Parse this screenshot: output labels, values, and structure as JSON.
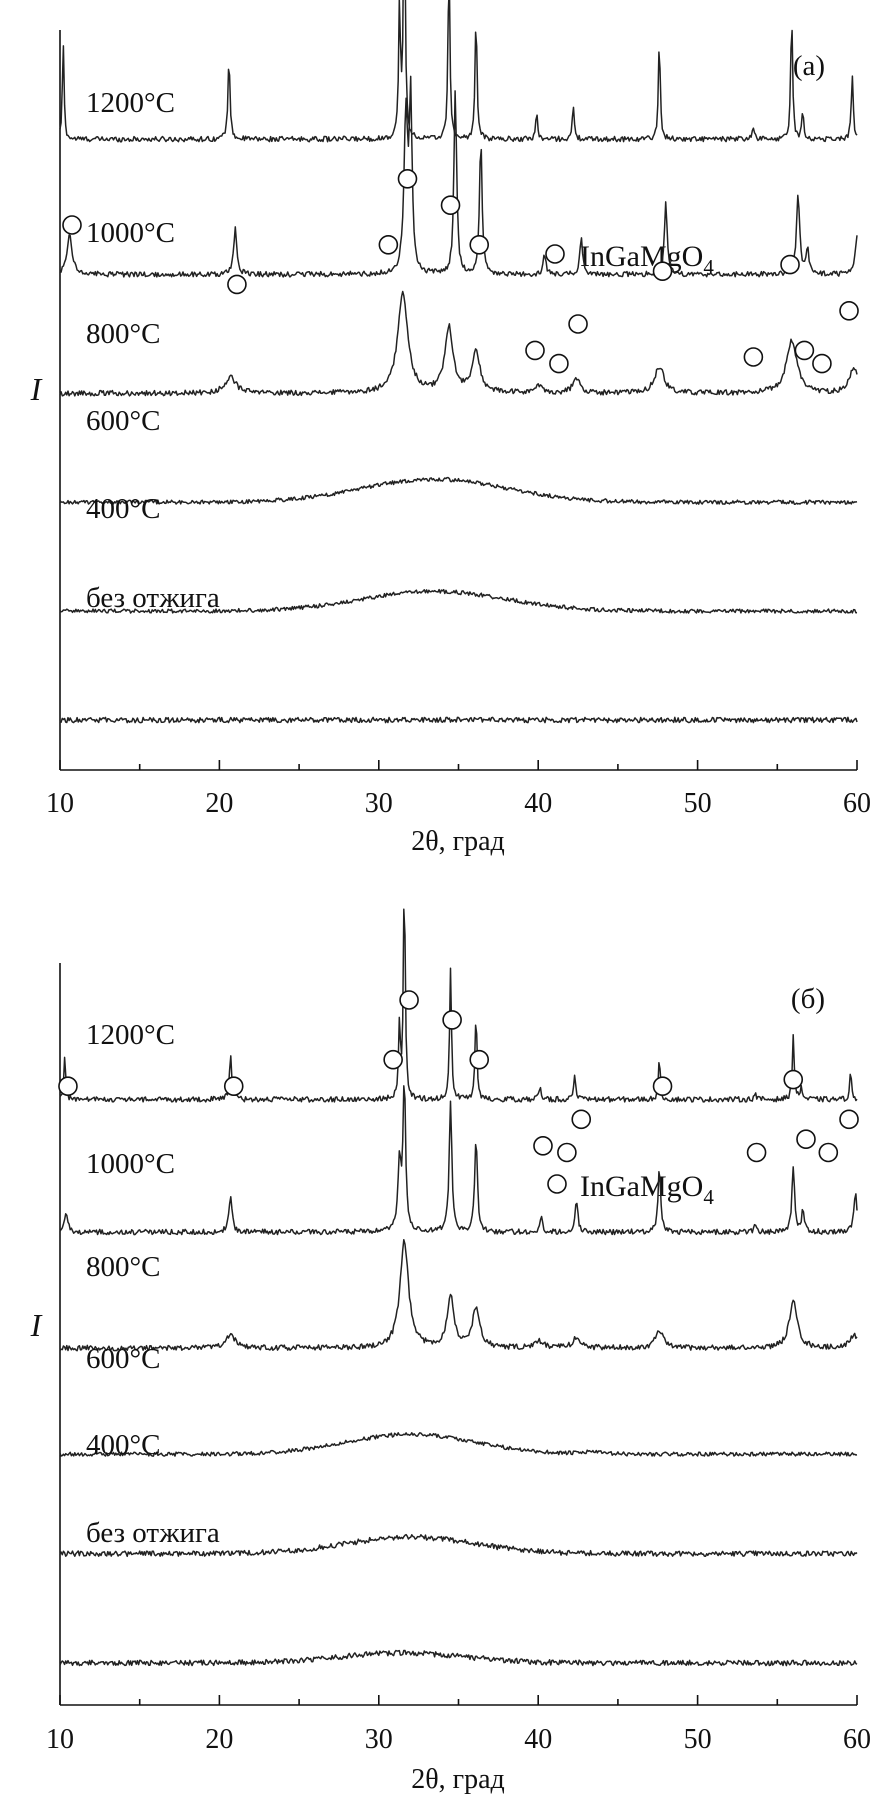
{
  "chart_data": [
    {
      "type": "line",
      "panel_label": "(a)",
      "xlabel": "2θ, град",
      "ylabel": "I",
      "xlim": [
        10,
        60
      ],
      "xticks": [
        10,
        20,
        30,
        40,
        50,
        60
      ],
      "legend": {
        "marker": "circle",
        "label": "InGaMgO",
        "subscript": "4"
      },
      "series": [
        {
          "name": "1200°C",
          "offset": 0.88,
          "baseline": 0.0,
          "noise": 0.004,
          "hump": null,
          "peaks": [
            [
              10.2,
              0.15,
              0.06
            ],
            [
              20.6,
              0.12,
              0.08
            ],
            [
              31.3,
              0.2,
              0.07
            ],
            [
              31.6,
              0.38,
              0.07
            ],
            [
              34.4,
              0.27,
              0.07
            ],
            [
              36.1,
              0.19,
              0.07
            ],
            [
              39.9,
              0.04,
              0.07
            ],
            [
              42.2,
              0.05,
              0.07
            ],
            [
              47.6,
              0.15,
              0.07
            ],
            [
              53.5,
              0.02,
              0.07
            ],
            [
              55.9,
              0.19,
              0.07
            ],
            [
              56.6,
              0.04,
              0.07
            ],
            [
              59.7,
              0.1,
              0.07
            ]
          ]
        },
        {
          "name": "1000°C",
          "offset": 0.675,
          "baseline": 0.0,
          "noise": 0.004,
          "hump": null,
          "peaks": [
            [
              10.6,
              0.06,
              0.2
            ],
            [
              21.0,
              0.07,
              0.12
            ],
            [
              31.7,
              0.24,
              0.14
            ],
            [
              32.0,
              0.26,
              0.1
            ],
            [
              34.8,
              0.28,
              0.1
            ],
            [
              36.4,
              0.2,
              0.1
            ],
            [
              40.4,
              0.03,
              0.1
            ],
            [
              42.7,
              0.06,
              0.1
            ],
            [
              48.0,
              0.11,
              0.1
            ],
            [
              56.3,
              0.12,
              0.12
            ],
            [
              56.9,
              0.04,
              0.1
            ],
            [
              60,
              0.06,
              0.12
            ]
          ]
        },
        {
          "name": "800°C",
          "offset": 0.495,
          "baseline": 0.0,
          "noise": 0.004,
          "hump": null,
          "peaks": [
            [
              20.7,
              0.025,
              0.4
            ],
            [
              31.5,
              0.15,
              0.38
            ],
            [
              34.4,
              0.1,
              0.3
            ],
            [
              36.1,
              0.06,
              0.3
            ],
            [
              40.0,
              0.01,
              0.3
            ],
            [
              42.4,
              0.02,
              0.3
            ],
            [
              47.6,
              0.04,
              0.35
            ],
            [
              55.9,
              0.08,
              0.4
            ],
            [
              59.8,
              0.04,
              0.3
            ]
          ]
        },
        {
          "name": "600°C",
          "offset": 0.33,
          "baseline": 0.0,
          "noise": 0.003,
          "hump": [
            33.5,
            0.035,
            4.5
          ],
          "peaks": []
        },
        {
          "name": "400°C",
          "offset": 0.165,
          "baseline": 0.0,
          "noise": 0.003,
          "hump": [
            33.5,
            0.03,
            4.5
          ],
          "peaks": []
        },
        {
          "name": "без отжига",
          "offset": 0.0,
          "baseline": 0.0,
          "noise": 0.004,
          "hump": null,
          "peaks": []
        }
      ],
      "circle_markers": [
        [
          10.8,
          0.75,
          "left"
        ],
        [
          21.1,
          0.66
        ],
        [
          30.6,
          0.72
        ],
        [
          31.8,
          0.82
        ],
        [
          34.5,
          0.78
        ],
        [
          36.3,
          0.72
        ],
        [
          39.8,
          0.56
        ],
        [
          41.3,
          0.54
        ],
        [
          42.5,
          0.6
        ],
        [
          47.8,
          0.68
        ],
        [
          53.5,
          0.55
        ],
        [
          55.8,
          0.69
        ],
        [
          56.7,
          0.56
        ],
        [
          57.8,
          0.54
        ],
        [
          59.5,
          0.62
        ]
      ]
    },
    {
      "type": "line",
      "panel_label": "(б)",
      "xlabel": "2θ, град",
      "ylabel": "I",
      "xlim": [
        10,
        60
      ],
      "xticks": [
        10,
        20,
        30,
        40,
        50,
        60
      ],
      "legend": {
        "marker": "circle",
        "label": "InGaMgO",
        "subscript": "4"
      },
      "series": [
        {
          "name": "1200°C",
          "offset": 0.85,
          "baseline": 0.0,
          "noise": 0.004,
          "hump": null,
          "peaks": [
            [
              10.3,
              0.07,
              0.06
            ],
            [
              20.7,
              0.07,
              0.08
            ],
            [
              31.3,
              0.11,
              0.07
            ],
            [
              31.6,
              0.33,
              0.07
            ],
            [
              34.5,
              0.2,
              0.07
            ],
            [
              36.1,
              0.13,
              0.07
            ],
            [
              40.1,
              0.02,
              0.07
            ],
            [
              42.3,
              0.04,
              0.07
            ],
            [
              47.6,
              0.06,
              0.07
            ],
            [
              53.6,
              0.01,
              0.07
            ],
            [
              56.0,
              0.1,
              0.07
            ],
            [
              56.5,
              0.02,
              0.07
            ],
            [
              59.6,
              0.04,
              0.07
            ]
          ]
        },
        {
          "name": "1000°C",
          "offset": 0.65,
          "baseline": 0.0,
          "noise": 0.004,
          "hump": null,
          "peaks": [
            [
              10.4,
              0.03,
              0.12
            ],
            [
              20.7,
              0.05,
              0.12
            ],
            [
              31.3,
              0.1,
              0.12
            ],
            [
              31.6,
              0.22,
              0.1
            ],
            [
              34.5,
              0.2,
              0.1
            ],
            [
              36.1,
              0.14,
              0.1
            ],
            [
              40.2,
              0.02,
              0.1
            ],
            [
              42.4,
              0.05,
              0.1
            ],
            [
              47.6,
              0.1,
              0.1
            ],
            [
              53.6,
              0.01,
              0.1
            ],
            [
              56.0,
              0.1,
              0.1
            ],
            [
              56.6,
              0.03,
              0.1
            ],
            [
              59.9,
              0.06,
              0.12
            ]
          ]
        },
        {
          "name": "800°C",
          "offset": 0.475,
          "baseline": 0.0,
          "noise": 0.004,
          "hump": null,
          "peaks": [
            [
              20.7,
              0.02,
              0.35
            ],
            [
              31.6,
              0.16,
              0.32
            ],
            [
              34.5,
              0.08,
              0.25
            ],
            [
              36.1,
              0.06,
              0.28
            ],
            [
              40.1,
              0.01,
              0.3
            ],
            [
              42.4,
              0.015,
              0.3
            ],
            [
              47.6,
              0.025,
              0.3
            ],
            [
              56.0,
              0.07,
              0.3
            ],
            [
              59.8,
              0.02,
              0.3
            ]
          ]
        },
        {
          "name": "600°C",
          "offset": 0.315,
          "baseline": 0.0,
          "noise": 0.003,
          "hump": [
            32.0,
            0.03,
            4.0
          ],
          "peaks": [
            [
              43.4,
              0.004,
              0.5
            ]
          ]
        },
        {
          "name": "400°C",
          "offset": 0.165,
          "baseline": 0.0,
          "noise": 0.004,
          "hump": [
            32.0,
            0.025,
            4.0
          ],
          "peaks": []
        },
        {
          "name": "без отжига",
          "offset": 0.0,
          "baseline": 0.0,
          "noise": 0.004,
          "hump": [
            31.5,
            0.015,
            4.0
          ],
          "peaks": []
        }
      ],
      "circle_markers": [
        [
          10.5,
          0.87
        ],
        [
          20.9,
          0.87
        ],
        [
          30.9,
          0.91
        ],
        [
          31.9,
          1.0
        ],
        [
          34.6,
          0.97
        ],
        [
          36.3,
          0.91
        ],
        [
          40.3,
          0.78
        ],
        [
          41.8,
          0.77
        ],
        [
          42.7,
          0.82
        ],
        [
          47.8,
          0.87
        ],
        [
          53.7,
          0.77
        ],
        [
          56.0,
          0.88
        ],
        [
          56.8,
          0.79
        ],
        [
          58.2,
          0.77
        ],
        [
          59.5,
          0.82
        ]
      ]
    }
  ]
}
